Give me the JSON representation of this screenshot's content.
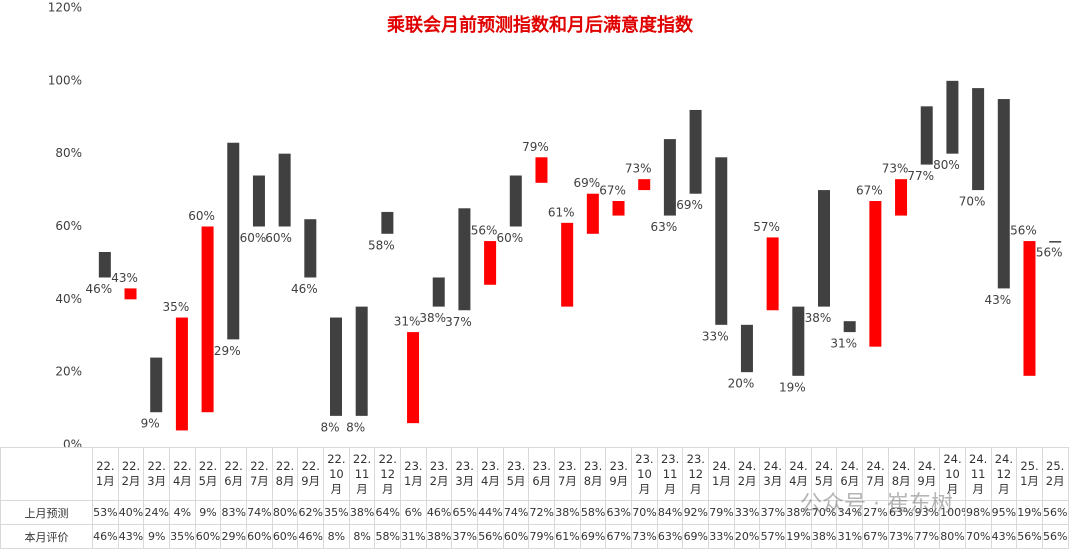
{
  "chart_data": {
    "type": "floating-bar",
    "title": "乘联会月前预测指数和月后满意度指数",
    "categories": [
      "22.1月",
      "22.2月",
      "22.3月",
      "22.4月",
      "22.5月",
      "22.6月",
      "22.7月",
      "22.8月",
      "22.9月",
      "22.10月",
      "22.11月",
      "22.12月",
      "23.1月",
      "23.2月",
      "23.3月",
      "23.4月",
      "23.5月",
      "23.6月",
      "23.7月",
      "23.8月",
      "23.9月",
      "23.10月",
      "23.11月",
      "23.12月",
      "24.1月",
      "24.2月",
      "24.3月",
      "24.4月",
      "24.5月",
      "24.6月",
      "24.7月",
      "24.8月",
      "24.9月",
      "24.10月",
      "24.11月",
      "24.12月",
      "25.1月",
      "25.2月"
    ],
    "series": [
      {
        "name": "上月预测",
        "values": [
          53,
          40,
          24,
          4,
          9,
          83,
          74,
          80,
          62,
          35,
          38,
          64,
          6,
          46,
          65,
          44,
          74,
          72,
          38,
          58,
          63,
          70,
          84,
          92,
          79,
          33,
          37,
          38,
          70,
          34,
          27,
          63,
          93,
          100,
          98,
          95,
          19,
          56
        ],
        "value_labels": [
          "53%",
          "40%",
          "24%",
          "4%",
          "9%",
          "83%",
          "74%",
          "80%",
          "62%",
          "35%",
          "38%",
          "64%",
          "6%",
          "46%",
          "65%",
          "44%",
          "74%",
          "72%",
          "38%",
          "58%",
          "63%",
          "70%",
          "84%",
          "92%",
          "79%",
          "33%",
          "37%",
          "38%",
          "70%",
          "34%",
          "27%",
          "63%",
          "93%",
          "100%",
          "98%",
          "95%",
          "19%",
          "56%"
        ]
      },
      {
        "name": "本月评价",
        "values": [
          46,
          43,
          9,
          35,
          60,
          29,
          60,
          60,
          46,
          8,
          8,
          58,
          31,
          38,
          37,
          56,
          60,
          79,
          61,
          69,
          67,
          73,
          63,
          69,
          33,
          20,
          57,
          19,
          38,
          31,
          67,
          73,
          77,
          80,
          70,
          43,
          56,
          56
        ],
        "value_labels": [
          "46%",
          "43%",
          "9%",
          "35%",
          "60%",
          "29%",
          "60%",
          "60%",
          "46%",
          "8%",
          "8%",
          "58%",
          "31%",
          "38%",
          "37%",
          "56%",
          "60%",
          "79%",
          "61%",
          "69%",
          "67%",
          "73%",
          "63%",
          "69%",
          "33%",
          "20%",
          "57%",
          "19%",
          "38%",
          "31%",
          "67%",
          "73%",
          "77%",
          "80%",
          "70%",
          "43%",
          "56%",
          "56%"
        ]
      }
    ],
    "up_color": "#ff0000",
    "down_color": "#404040",
    "ylim": [
      0,
      120
    ],
    "yticks": [
      {
        "value": 0,
        "label": "0%"
      },
      {
        "value": 20,
        "label": "20%"
      },
      {
        "value": 40,
        "label": "40%"
      },
      {
        "value": 60,
        "label": "60%"
      },
      {
        "value": 80,
        "label": "80%"
      },
      {
        "value": 100,
        "label": "100%"
      },
      {
        "value": 120,
        "label": "120%"
      }
    ],
    "grid": false,
    "watermark": "公众号 · 崔东树"
  }
}
